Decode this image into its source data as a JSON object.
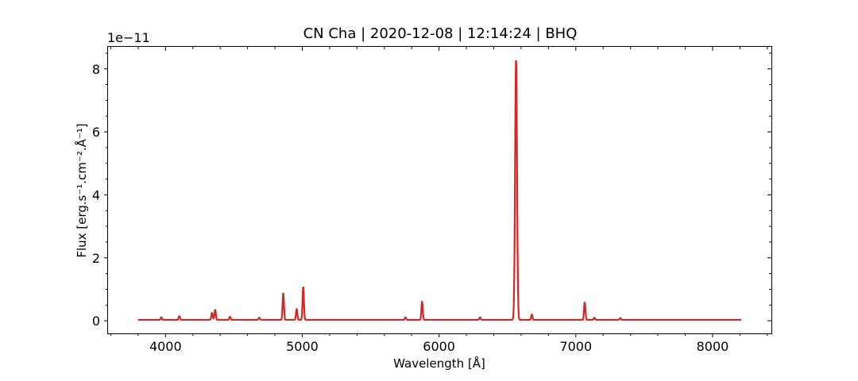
{
  "chart_data": {
    "type": "line",
    "title": "CN Cha | 2020-12-08 | 12:14:24 | BHQ",
    "xlabel": "Wavelength [Å]",
    "ylabel": "Flux [erg.s⁻¹.cm⁻².Å⁻¹]",
    "y_offset_label": "1e−11",
    "xlim": [
      3580,
      8430
    ],
    "ylim": [
      -0.4,
      8.7
    ],
    "x_ticks": [
      4000,
      5000,
      6000,
      7000,
      8000
    ],
    "x_tick_labels": [
      "4000",
      "5000",
      "6000",
      "7000",
      "8000"
    ],
    "y_ticks": [
      0,
      2,
      4,
      6,
      8
    ],
    "y_tick_labels": [
      "0",
      "2",
      "4",
      "6",
      "8"
    ],
    "grid": false,
    "line_color": "#d62728",
    "series": [
      {
        "x_range": [
          3800,
          8210
        ],
        "continuum": 0.03,
        "emission_lines": [
          {
            "x": 3970,
            "peak": 0.08
          },
          {
            "x": 4101,
            "peak": 0.12
          },
          {
            "x": 4340,
            "peak": 0.22
          },
          {
            "x": 4363,
            "peak": 0.32
          },
          {
            "x": 4471,
            "peak": 0.1
          },
          {
            "x": 4686,
            "peak": 0.07
          },
          {
            "x": 4861,
            "peak": 0.85
          },
          {
            "x": 4959,
            "peak": 0.35
          },
          {
            "x": 5007,
            "peak": 1.05
          },
          {
            "x": 5755,
            "peak": 0.08
          },
          {
            "x": 5876,
            "peak": 0.58
          },
          {
            "x": 6300,
            "peak": 0.08
          },
          {
            "x": 6563,
            "peak": 8.3
          },
          {
            "x": 6678,
            "peak": 0.17
          },
          {
            "x": 7065,
            "peak": 0.56
          },
          {
            "x": 7136,
            "peak": 0.07
          },
          {
            "x": 7325,
            "peak": 0.06
          }
        ]
      }
    ]
  }
}
